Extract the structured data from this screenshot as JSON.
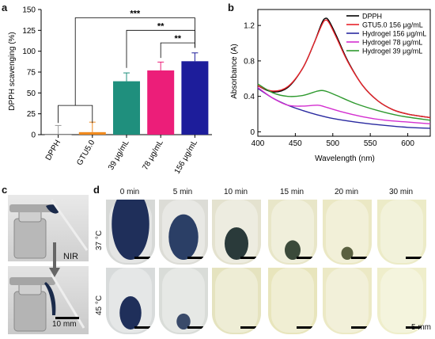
{
  "panels": {
    "a": "a",
    "b": "b",
    "c": "c",
    "d": "d"
  },
  "colors": {
    "dpph": "#9a9a9a",
    "gtu": "#f08a1e",
    "h39": "#1f8f7d",
    "h78": "#ec1e79",
    "h156": "#1d1d9b",
    "line_dpph": "#000000",
    "line_gtu": "#e8232a",
    "line_h156": "#2a2aa0",
    "line_h78": "#d42fd0",
    "line_h39": "#2f9a2f"
  },
  "chart_data": [
    {
      "type": "bar",
      "ylabel": "DPPH scavenging (%)",
      "ylim": [
        0,
        150
      ],
      "yticks": [
        0,
        25,
        50,
        75,
        100,
        125,
        150
      ],
      "categories": [
        "DPPH",
        "GTU5.0",
        "39 μg/mL",
        "78 μg/mL",
        "156 μg/mL"
      ],
      "values": [
        0,
        3,
        64,
        77,
        88
      ],
      "errors": [
        11,
        12,
        10,
        10,
        10
      ],
      "significance": [
        "***",
        "**",
        "**"
      ]
    },
    {
      "type": "line",
      "xlabel": "Wavelength (nm)",
      "ylabel": "Absorbance (A)",
      "xlim": [
        400,
        630
      ],
      "ylim": [
        -0.05,
        1.38
      ],
      "xticks": [
        400,
        450,
        500,
        550,
        600
      ],
      "yticks": [
        0,
        0.4,
        0.8,
        1.2
      ],
      "legend_position": "top-right",
      "series": [
        {
          "name": "DPPH",
          "points": [
            [
              400,
              0.52
            ],
            [
              420,
              0.45
            ],
            [
              440,
              0.5
            ],
            [
              460,
              0.72
            ],
            [
              475,
              1.0
            ],
            [
              485,
              1.22
            ],
            [
              490,
              1.28
            ],
            [
              495,
              1.25
            ],
            [
              505,
              1.08
            ],
            [
              520,
              0.8
            ],
            [
              540,
              0.52
            ],
            [
              560,
              0.35
            ],
            [
              580,
              0.25
            ],
            [
              600,
              0.2
            ],
            [
              630,
              0.16
            ]
          ]
        },
        {
          "name": "GTU5.0 156 μg/mL",
          "points": [
            [
              400,
              0.52
            ],
            [
              420,
              0.46
            ],
            [
              440,
              0.51
            ],
            [
              460,
              0.72
            ],
            [
              475,
              1.0
            ],
            [
              485,
              1.2
            ],
            [
              490,
              1.26
            ],
            [
              495,
              1.23
            ],
            [
              505,
              1.06
            ],
            [
              520,
              0.79
            ],
            [
              540,
              0.52
            ],
            [
              560,
              0.35
            ],
            [
              580,
              0.25
            ],
            [
              600,
              0.2
            ],
            [
              630,
              0.16
            ]
          ]
        },
        {
          "name": "Hydrogel 156 μg/mL",
          "points": [
            [
              400,
              0.49
            ],
            [
              420,
              0.38
            ],
            [
              440,
              0.3
            ],
            [
              460,
              0.24
            ],
            [
              480,
              0.19
            ],
            [
              500,
              0.15
            ],
            [
              530,
              0.11
            ],
            [
              560,
              0.08
            ],
            [
              600,
              0.05
            ],
            [
              630,
              0.04
            ]
          ]
        },
        {
          "name": "Hydrogel 78 μg/mL",
          "points": [
            [
              400,
              0.5
            ],
            [
              420,
              0.38
            ],
            [
              440,
              0.3
            ],
            [
              460,
              0.29
            ],
            [
              480,
              0.3
            ],
            [
              490,
              0.28
            ],
            [
              510,
              0.23
            ],
            [
              540,
              0.17
            ],
            [
              570,
              0.13
            ],
            [
              600,
              0.11
            ],
            [
              630,
              0.09
            ]
          ]
        },
        {
          "name": "Hydrogel 39 μg/mL",
          "points": [
            [
              400,
              0.54
            ],
            [
              420,
              0.44
            ],
            [
              440,
              0.4
            ],
            [
              460,
              0.41
            ],
            [
              480,
              0.46
            ],
            [
              490,
              0.46
            ],
            [
              505,
              0.41
            ],
            [
              530,
              0.32
            ],
            [
              560,
              0.24
            ],
            [
              590,
              0.18
            ],
            [
              630,
              0.13
            ]
          ]
        }
      ]
    }
  ],
  "panel_c": {
    "nir": "NIR",
    "scale": "10 mm"
  },
  "panel_d": {
    "times": [
      "0 min",
      "5 min",
      "10 min",
      "15 min",
      "20 min",
      "30 min"
    ],
    "rows": [
      "37 °C",
      "45 °C"
    ],
    "scale": "5 mm"
  }
}
